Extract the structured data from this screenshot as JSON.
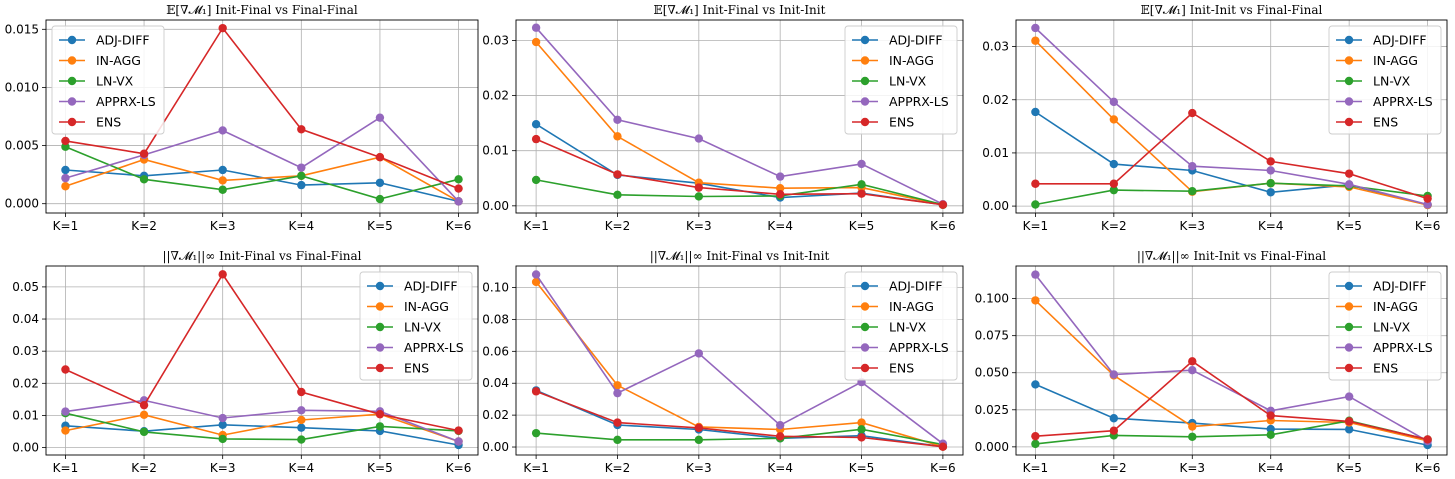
{
  "colors": {
    "ADJ-DIFF": "#1f77b4",
    "IN-AGG": "#ff7f0e",
    "LN-VX": "#2ca02c",
    "APPRX-LS": "#9467bd",
    "ENS": "#d62728"
  },
  "chart_data": [
    {
      "type": "line",
      "title": "𝔼[∇𝓜₁] Init-Final vs Final-Final",
      "categories": [
        "K=1",
        "K=2",
        "K=3",
        "K=4",
        "K=5",
        "K=6"
      ],
      "ylim": [
        -0.0008,
        0.0158
      ],
      "yticks": [
        0.0,
        0.005,
        0.01,
        0.015
      ],
      "yticklabels": [
        "0.000",
        "0.005",
        "0.010",
        "0.015"
      ],
      "legend_loc": "upper-left",
      "series": [
        {
          "name": "ADJ-DIFF",
          "values": [
            0.0029,
            0.0024,
            0.0029,
            0.0016,
            0.0018,
            0.0002
          ]
        },
        {
          "name": "IN-AGG",
          "values": [
            0.0015,
            0.0038,
            0.002,
            0.0024,
            0.004,
            0.0002
          ]
        },
        {
          "name": "LN-VX",
          "values": [
            0.0049,
            0.0021,
            0.0012,
            0.0024,
            0.0004,
            0.0021
          ]
        },
        {
          "name": "APPRX-LS",
          "values": [
            0.0022,
            0.0042,
            0.0063,
            0.0031,
            0.0074,
            0.0002
          ]
        },
        {
          "name": "ENS",
          "values": [
            0.0054,
            0.0043,
            0.0151,
            0.0064,
            0.004,
            0.0013
          ]
        }
      ]
    },
    {
      "type": "line",
      "title": "𝔼[∇𝓜₁] Init-Final vs Init-Init",
      "categories": [
        "K=1",
        "K=2",
        "K=3",
        "K=4",
        "K=5",
        "K=6"
      ],
      "ylim": [
        -0.0013,
        0.0337
      ],
      "yticks": [
        0.0,
        0.01,
        0.02,
        0.03
      ],
      "yticklabels": [
        "0.00",
        "0.01",
        "0.02",
        "0.03"
      ],
      "legend_loc": "upper-right",
      "series": [
        {
          "name": "ADJ-DIFF",
          "values": [
            0.0148,
            0.0056,
            0.0041,
            0.0015,
            0.0023,
            0.0002
          ]
        },
        {
          "name": "IN-AGG",
          "values": [
            0.0297,
            0.0126,
            0.0042,
            0.0032,
            0.0033,
            0.0002
          ]
        },
        {
          "name": "LN-VX",
          "values": [
            0.0047,
            0.002,
            0.0017,
            0.0018,
            0.0039,
            0.0002
          ]
        },
        {
          "name": "APPRX-LS",
          "values": [
            0.0323,
            0.0156,
            0.0122,
            0.0053,
            0.0076,
            0.0003
          ]
        },
        {
          "name": "ENS",
          "values": [
            0.0121,
            0.0057,
            0.0033,
            0.0021,
            0.0022,
            0.0002
          ]
        }
      ]
    },
    {
      "type": "line",
      "title": "𝔼[∇𝓜₁] Init-Init vs Final-Final",
      "categories": [
        "K=1",
        "K=2",
        "K=3",
        "K=4",
        "K=5",
        "K=6"
      ],
      "ylim": [
        -0.0013,
        0.035
      ],
      "yticks": [
        0.0,
        0.01,
        0.02,
        0.03
      ],
      "yticklabels": [
        "0.00",
        "0.01",
        "0.02",
        "0.03"
      ],
      "legend_loc": "upper-right",
      "series": [
        {
          "name": "ADJ-DIFF",
          "values": [
            0.0177,
            0.0079,
            0.0067,
            0.0026,
            0.004,
            0.0002
          ]
        },
        {
          "name": "IN-AGG",
          "values": [
            0.0311,
            0.0163,
            0.0027,
            0.0043,
            0.0036,
            0.0002
          ]
        },
        {
          "name": "LN-VX",
          "values": [
            0.0003,
            0.003,
            0.0028,
            0.0043,
            0.0038,
            0.0019
          ]
        },
        {
          "name": "APPRX-LS",
          "values": [
            0.0335,
            0.0196,
            0.0075,
            0.0067,
            0.0041,
            0.0003
          ]
        },
        {
          "name": "ENS",
          "values": [
            0.0042,
            0.0042,
            0.0175,
            0.0084,
            0.0061,
            0.0014
          ]
        }
      ]
    },
    {
      "type": "line",
      "title": "||∇𝓜₁||∞ Init-Final vs Final-Final",
      "categories": [
        "K=1",
        "K=2",
        "K=3",
        "K=4",
        "K=5",
        "K=6"
      ],
      "ylim": [
        -0.0023,
        0.0565
      ],
      "yticks": [
        0.0,
        0.01,
        0.02,
        0.03,
        0.04,
        0.05
      ],
      "yticklabels": [
        "0.00",
        "0.01",
        "0.02",
        "0.03",
        "0.04",
        "0.05"
      ],
      "legend_loc": "upper-right",
      "series": [
        {
          "name": "ADJ-DIFF",
          "values": [
            0.0068,
            0.0051,
            0.0071,
            0.0062,
            0.0052,
            0.0008
          ]
        },
        {
          "name": "IN-AGG",
          "values": [
            0.0053,
            0.0102,
            0.0039,
            0.0086,
            0.0104,
            0.0019
          ]
        },
        {
          "name": "LN-VX",
          "values": [
            0.0107,
            0.0049,
            0.0027,
            0.0025,
            0.0066,
            0.0052
          ]
        },
        {
          "name": "APPRX-LS",
          "values": [
            0.0112,
            0.0147,
            0.0092,
            0.0116,
            0.0113,
            0.0019
          ]
        },
        {
          "name": "ENS",
          "values": [
            0.0243,
            0.0132,
            0.0539,
            0.0173,
            0.0104,
            0.0053
          ]
        }
      ]
    },
    {
      "type": "line",
      "title": "||∇𝓜₁||∞ Init-Final vs Init-Init",
      "categories": [
        "K=1",
        "K=2",
        "K=3",
        "K=4",
        "K=5",
        "K=6"
      ],
      "ylim": [
        -0.005,
        0.1135
      ],
      "yticks": [
        0.0,
        0.02,
        0.04,
        0.06,
        0.08,
        0.1
      ],
      "yticklabels": [
        "0.00",
        "0.02",
        "0.04",
        "0.06",
        "0.08",
        "0.10"
      ],
      "legend_loc": "upper-right",
      "series": [
        {
          "name": "ADJ-DIFF",
          "values": [
            0.0355,
            0.0138,
            0.011,
            0.0055,
            0.0071,
            0.0002
          ]
        },
        {
          "name": "IN-AGG",
          "values": [
            0.1035,
            0.0387,
            0.0126,
            0.011,
            0.0153,
            0.0002
          ]
        },
        {
          "name": "LN-VX",
          "values": [
            0.0087,
            0.0045,
            0.0045,
            0.0055,
            0.0111,
            0.0016
          ]
        },
        {
          "name": "APPRX-LS",
          "values": [
            0.1082,
            0.0338,
            0.0587,
            0.0137,
            0.0407,
            0.0021
          ]
        },
        {
          "name": "ENS",
          "values": [
            0.0349,
            0.0153,
            0.012,
            0.0067,
            0.006,
            0.0002
          ]
        }
      ]
    },
    {
      "type": "line",
      "title": "||∇𝓜₁||∞ Init-Init vs Final-Final",
      "categories": [
        "K=1",
        "K=2",
        "K=3",
        "K=4",
        "K=5",
        "K=6"
      ],
      "ylim": [
        -0.0055,
        0.122
      ],
      "yticks": [
        0.0,
        0.025,
        0.05,
        0.075,
        0.1
      ],
      "yticklabels": [
        "0.000",
        "0.025",
        "0.050",
        "0.075",
        "0.100"
      ],
      "legend_loc": "upper-right",
      "series": [
        {
          "name": "ADJ-DIFF",
          "values": [
            0.0421,
            0.0193,
            0.016,
            0.012,
            0.0118,
            0.0012
          ]
        },
        {
          "name": "IN-AGG",
          "values": [
            0.0988,
            0.0482,
            0.0137,
            0.0178,
            0.0164,
            0.0041
          ]
        },
        {
          "name": "LN-VX",
          "values": [
            0.002,
            0.0077,
            0.0068,
            0.0081,
            0.0176,
            0.005
          ]
        },
        {
          "name": "APPRX-LS",
          "values": [
            0.1162,
            0.0488,
            0.0517,
            0.0243,
            0.0339,
            0.0038
          ]
        },
        {
          "name": "ENS",
          "values": [
            0.0072,
            0.0109,
            0.0577,
            0.0211,
            0.0172,
            0.005
          ]
        }
      ]
    }
  ]
}
